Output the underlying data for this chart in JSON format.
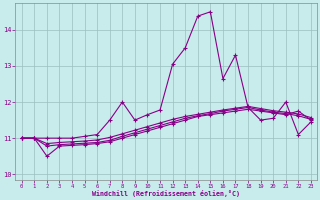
{
  "xlabel": "Windchill (Refroidissement éolien,°C)",
  "background_color": "#c8ecec",
  "grid_color": "#9bbfbf",
  "line_color": "#880088",
  "xlim": [
    -0.5,
    23.5
  ],
  "ylim": [
    9.85,
    14.75
  ],
  "yticks": [
    10,
    11,
    12,
    13,
    14
  ],
  "xticks": [
    0,
    1,
    2,
    3,
    4,
    5,
    6,
    7,
    8,
    9,
    10,
    11,
    12,
    13,
    14,
    15,
    16,
    17,
    18,
    19,
    20,
    21,
    22,
    23
  ],
  "series": [
    [
      11.0,
      11.0,
      10.5,
      10.78,
      10.8,
      10.82,
      10.85,
      10.9,
      11.0,
      11.1,
      11.2,
      11.3,
      11.4,
      11.5,
      11.6,
      11.65,
      11.7,
      11.75,
      11.8,
      11.75,
      11.7,
      11.65,
      11.75,
      11.5
    ],
    [
      11.0,
      11.0,
      10.78,
      10.82,
      10.84,
      10.86,
      10.88,
      10.94,
      11.05,
      11.15,
      11.25,
      11.35,
      11.45,
      11.55,
      11.62,
      11.68,
      11.75,
      11.8,
      11.85,
      11.78,
      11.72,
      11.68,
      11.62,
      11.52
    ],
    [
      11.0,
      11.0,
      10.85,
      10.88,
      10.9,
      10.92,
      10.95,
      11.02,
      11.12,
      11.22,
      11.32,
      11.42,
      11.52,
      11.6,
      11.66,
      11.72,
      11.78,
      11.83,
      11.88,
      11.82,
      11.76,
      11.72,
      11.67,
      11.57
    ],
    [
      11.0,
      11.0,
      11.0,
      11.0,
      11.0,
      11.05,
      11.1,
      11.5,
      12.0,
      11.5,
      11.65,
      11.78,
      13.05,
      13.5,
      14.38,
      14.5,
      12.65,
      13.3,
      11.85,
      11.5,
      11.55,
      12.0,
      11.1,
      11.45
    ]
  ]
}
